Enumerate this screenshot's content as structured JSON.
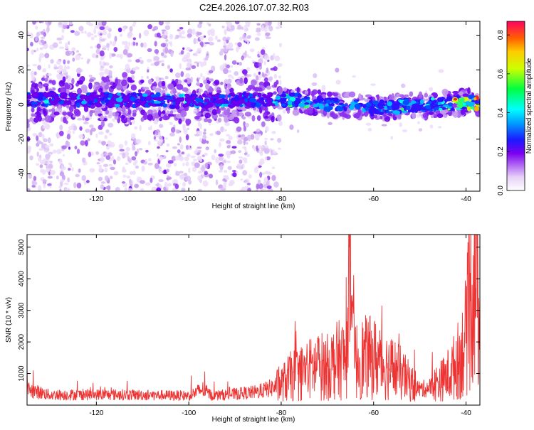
{
  "title": "C2E4.2026.107.07.32.R03",
  "chart_data": [
    {
      "type": "heatmap",
      "xlabel": "Height of straight line (km)",
      "ylabel": "Frequency (Hz)",
      "xlim": [
        -135,
        -37
      ],
      "ylim": [
        -50,
        48
      ],
      "xticks": [
        -120,
        -100,
        -80,
        -60,
        -40
      ],
      "yticks": [
        -40,
        -20,
        0,
        20,
        40
      ],
      "colorbar": {
        "label": "Normalized spectral amplitude",
        "range": [
          0,
          0.87
        ],
        "ticks": [
          0.0,
          0.2,
          0.4,
          0.6,
          0.8
        ]
      },
      "ridge": {
        "description_x": [
          -135,
          -120,
          -100,
          -80,
          -60,
          -40,
          -37
        ],
        "center_freq_hz": [
          3,
          3,
          2,
          3,
          -2,
          1,
          1
        ]
      }
    },
    {
      "type": "line",
      "xlabel": "Height of straight line (km)",
      "ylabel": "SNR (10 * v/v)",
      "xlim": [
        -135,
        -37
      ],
      "ylim": [
        0,
        5400
      ],
      "xticks": [
        -120,
        -100,
        -80,
        -60,
        -40
      ],
      "yticks": [
        1000,
        2000,
        3000,
        4000,
        5000
      ],
      "color": "#ee3333",
      "series": [
        {
          "x": [
            -135,
            -130,
            -125,
            -120,
            -115,
            -110,
            -105,
            -100,
            -97,
            -95,
            -90,
            -85,
            -82,
            -80,
            -78,
            -75,
            -72,
            -70,
            -68,
            -66,
            -65,
            -64,
            -62,
            -60,
            -58,
            -55,
            -52,
            -50,
            -48,
            -45,
            -43,
            -41,
            -40,
            -39,
            -38,
            -37
          ],
          "y": [
            500,
            320,
            330,
            330,
            330,
            320,
            310,
            300,
            500,
            300,
            350,
            420,
            550,
            650,
            900,
            1050,
            1250,
            1200,
            1400,
            1500,
            2500,
            1400,
            1500,
            1500,
            1300,
            1100,
            700,
            500,
            550,
            800,
            1100,
            1600,
            2200,
            3500,
            4700,
            2000
          ]
        }
      ]
    }
  ]
}
